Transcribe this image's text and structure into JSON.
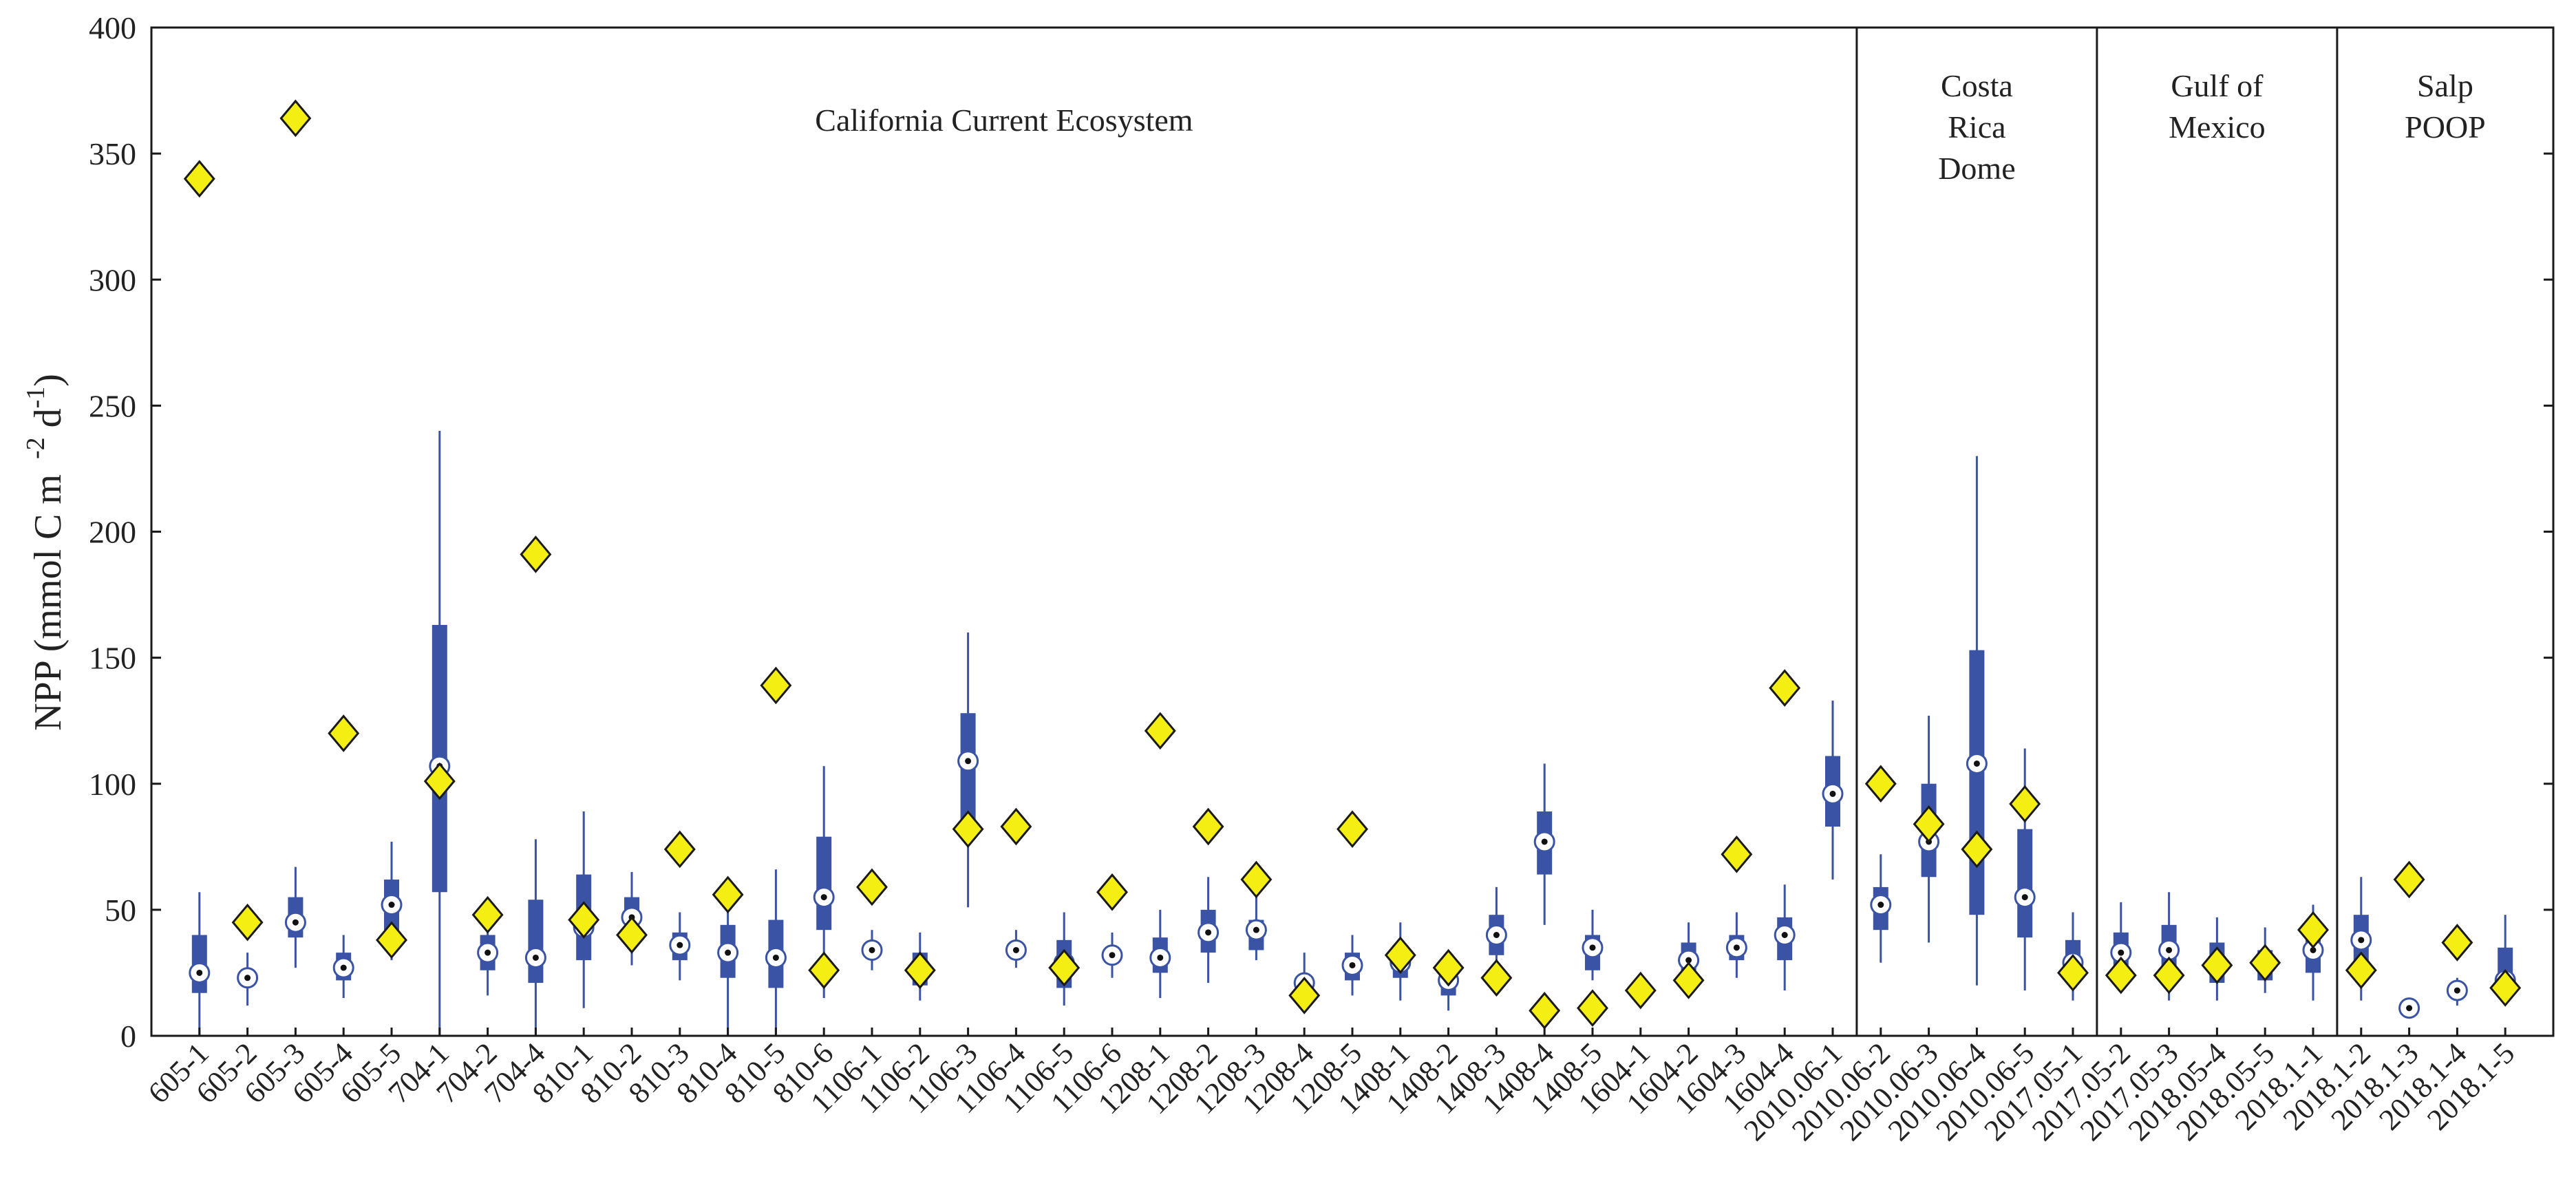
{
  "chart_data": {
    "type": "box-and-marker",
    "ylabel": "NPP (mmol C m -2 d-1)",
    "ylabel_parts": {
      "main": "NPP (mmol C m",
      "sup1": "-2",
      "d": " d",
      "sup2": "-1",
      "close": ")"
    },
    "ylim": [
      0,
      400
    ],
    "yticks": [
      0,
      50,
      100,
      150,
      200,
      250,
      300,
      350,
      400
    ],
    "grid": false,
    "colors": {
      "box": "#3a53a4",
      "diamond_fill": "#f5ee12",
      "diamond_stroke": "#1a1a1a",
      "frame": "#1a1a1a"
    },
    "regions": [
      {
        "label": [
          "California Current Ecosystem"
        ],
        "from": 0,
        "to": 34
      },
      {
        "label": [
          "Costa",
          "Rica",
          "Dome"
        ],
        "from": 35,
        "to": 39
      },
      {
        "label": [
          "Gulf of",
          "Mexico"
        ],
        "from": 40,
        "to": 44
      },
      {
        "label": [
          "Salp",
          "POOP"
        ],
        "from": 45,
        "to": 49
      }
    ],
    "categories": [
      "605-1",
      "605-2",
      "605-3",
      "605-4",
      "605-5",
      "704-1",
      "704-2",
      "704-4",
      "810-1",
      "810-2",
      "810-3",
      "810-4",
      "810-5",
      "810-6",
      "1106-1",
      "1106-2",
      "1106-3",
      "1106-4",
      "1106-5",
      "1106-6",
      "1208-1",
      "1208-2",
      "1208-3",
      "1208-4",
      "1208-5",
      "1408-1",
      "1408-2",
      "1408-3",
      "1408-4",
      "1408-5",
      "1604-1",
      "1604-2",
      "1604-3",
      "1604-4",
      "2010.06-1",
      "2010.06-2",
      "2010.06-3",
      "2010.06-4",
      "2010.06-5",
      "2017.05-1",
      "2017.05-2",
      "2017.05-3",
      "2018.05-4",
      "2018.05-5",
      "2018.1-1",
      "2018.1-2",
      "2018.1-3",
      "2018.1-4",
      "2018.1-5"
    ],
    "boxes": [
      {
        "min": 0,
        "q1": 17,
        "q3": 40,
        "max": 57,
        "median": 25
      },
      {
        "min": 12,
        "q1": null,
        "q3": null,
        "max": 33,
        "median": 23
      },
      {
        "min": 27,
        "q1": 39,
        "q3": 55,
        "max": 67,
        "median": 45
      },
      {
        "min": 15,
        "q1": 22,
        "q3": 33,
        "max": 40,
        "median": 27
      },
      {
        "min": 30,
        "q1": 42,
        "q3": 62,
        "max": 77,
        "median": 52
      },
      {
        "min": 0,
        "q1": 57,
        "q3": 163,
        "max": 240,
        "median": 107
      },
      {
        "min": 16,
        "q1": 26,
        "q3": 40,
        "max": 50,
        "median": 33
      },
      {
        "min": 0,
        "q1": 21,
        "q3": 54,
        "max": 78,
        "median": 31
      },
      {
        "min": 11,
        "q1": 30,
        "q3": 64,
        "max": 89,
        "median": 43
      },
      {
        "min": 28,
        "q1": 39,
        "q3": 55,
        "max": 65,
        "median": 47
      },
      {
        "min": 22,
        "q1": 30,
        "q3": 41,
        "max": 49,
        "median": 36
      },
      {
        "min": 0,
        "q1": 23,
        "q3": 44,
        "max": 55,
        "median": 33
      },
      {
        "min": 0,
        "q1": 19,
        "q3": 46,
        "max": 66,
        "median": 31
      },
      {
        "min": 15,
        "q1": 42,
        "q3": 79,
        "max": 107,
        "median": 55
      },
      {
        "min": 26,
        "q1": null,
        "q3": null,
        "max": 42,
        "median": 34
      },
      {
        "min": 14,
        "q1": 20,
        "q3": 33,
        "max": 41,
        "median": 27
      },
      {
        "min": 51,
        "q1": 82,
        "q3": 128,
        "max": 160,
        "median": 109
      },
      {
        "min": 27,
        "q1": null,
        "q3": null,
        "max": 42,
        "median": 34
      },
      {
        "min": 12,
        "q1": 19,
        "q3": 38,
        "max": 49,
        "median": 29
      },
      {
        "min": 23,
        "q1": null,
        "q3": null,
        "max": 41,
        "median": 32
      },
      {
        "min": 15,
        "q1": 25,
        "q3": 39,
        "max": 50,
        "median": 31
      },
      {
        "min": 21,
        "q1": 33,
        "q3": 50,
        "max": 63,
        "median": 41
      },
      {
        "min": 30,
        "q1": 34,
        "q3": 46,
        "max": 56,
        "median": 42
      },
      {
        "min": 9,
        "q1": null,
        "q3": null,
        "max": 33,
        "median": 21
      },
      {
        "min": 16,
        "q1": 22,
        "q3": 33,
        "max": 40,
        "median": 28
      },
      {
        "min": 14,
        "q1": 23,
        "q3": 36,
        "max": 45,
        "median": 29
      },
      {
        "min": 10,
        "q1": 16,
        "q3": 27,
        "max": 34,
        "median": 22
      },
      {
        "min": 24,
        "q1": 32,
        "q3": 48,
        "max": 59,
        "median": 40
      },
      {
        "min": 44,
        "q1": 64,
        "q3": 89,
        "max": 108,
        "median": 77
      },
      {
        "min": 22,
        "q1": 26,
        "q3": 40,
        "max": 50,
        "median": 35
      },
      {
        "min": null,
        "q1": null,
        "q3": null,
        "max": null,
        "median": null
      },
      {
        "min": 16,
        "q1": 21,
        "q3": 37,
        "max": 45,
        "median": 30
      },
      {
        "min": 23,
        "q1": 30,
        "q3": 40,
        "max": 49,
        "median": 35
      },
      {
        "min": 18,
        "q1": 30,
        "q3": 47,
        "max": 60,
        "median": 40
      },
      {
        "min": 62,
        "q1": 83,
        "q3": 111,
        "max": 133,
        "median": 96
      },
      {
        "min": 29,
        "q1": 42,
        "q3": 59,
        "max": 72,
        "median": 52
      },
      {
        "min": 37,
        "q1": 63,
        "q3": 100,
        "max": 127,
        "median": 77
      },
      {
        "min": 20,
        "q1": 48,
        "q3": 153,
        "max": 230,
        "median": 108
      },
      {
        "min": 18,
        "q1": 39,
        "q3": 82,
        "max": 114,
        "median": 55
      },
      {
        "min": 14,
        "q1": 21,
        "q3": 38,
        "max": 49,
        "median": 29
      },
      {
        "min": 19,
        "q1": 25,
        "q3": 41,
        "max": 53,
        "median": 33
      },
      {
        "min": 14,
        "q1": 26,
        "q3": 44,
        "max": 57,
        "median": 34
      },
      {
        "min": 14,
        "q1": 21,
        "q3": 37,
        "max": 47,
        "median": 29
      },
      {
        "min": 17,
        "q1": 22,
        "q3": 34,
        "max": 43,
        "median": 29
      },
      {
        "min": 14,
        "q1": 25,
        "q3": 40,
        "max": 52,
        "median": 34
      },
      {
        "min": 14,
        "q1": 27,
        "q3": 48,
        "max": 63,
        "median": 38
      },
      {
        "min": null,
        "q1": null,
        "q3": null,
        "max": null,
        "median": 11
      },
      {
        "min": 12,
        "q1": null,
        "q3": null,
        "max": 23,
        "median": 18
      },
      {
        "min": 14,
        "q1": 18,
        "q3": 35,
        "max": 48,
        "median": 22
      }
    ],
    "diamonds": [
      340,
      45,
      364,
      120,
      38,
      101,
      48,
      191,
      46,
      40,
      74,
      56,
      139,
      26,
      59,
      26,
      82,
      83,
      27,
      57,
      121,
      83,
      62,
      16,
      82,
      32,
      27,
      23,
      10,
      11,
      18,
      22,
      72,
      138,
      null,
      100,
      84,
      74,
      92,
      25,
      24,
      24,
      28,
      29,
      42,
      26,
      62,
      37,
      19
    ]
  }
}
